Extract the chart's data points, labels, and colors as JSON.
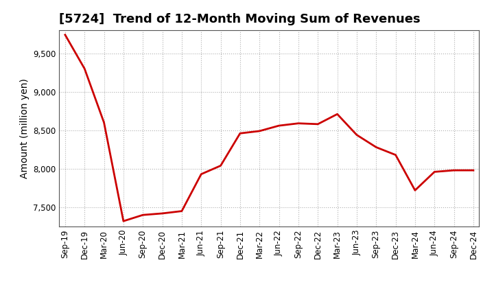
{
  "title": "[5724]  Trend of 12-Month Moving Sum of Revenues",
  "ylabel": "Amount (million yen)",
  "line_color": "#cc0000",
  "background_color": "#ffffff",
  "plot_bg_color": "#ffffff",
  "grid_color": "#b0b0b0",
  "x_labels": [
    "Sep-19",
    "Dec-19",
    "Mar-20",
    "Jun-20",
    "Sep-20",
    "Dec-20",
    "Mar-21",
    "Jun-21",
    "Sep-21",
    "Dec-21",
    "Mar-22",
    "Jun-22",
    "Sep-22",
    "Dec-22",
    "Mar-23",
    "Jun-23",
    "Sep-23",
    "Dec-23",
    "Mar-24",
    "Jun-24",
    "Sep-24",
    "Dec-24"
  ],
  "y_values": [
    9740,
    9300,
    8600,
    7320,
    7400,
    7420,
    7450,
    7930,
    8040,
    8460,
    8490,
    8560,
    8590,
    8580,
    8710,
    8440,
    8280,
    8180,
    7720,
    7960,
    7980,
    7980
  ],
  "ylim": [
    7250,
    9800
  ],
  "yticks": [
    7500,
    8000,
    8500,
    9000,
    9500
  ],
  "title_fontsize": 13,
  "tick_fontsize": 8.5,
  "ylabel_fontsize": 10,
  "line_width": 2.0
}
